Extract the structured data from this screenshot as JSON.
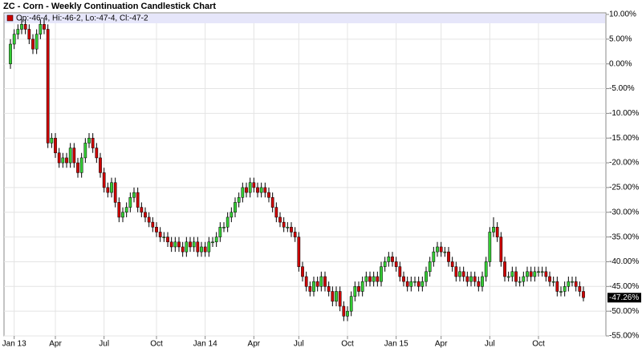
{
  "chart_data": {
    "type": "candlestick",
    "title": "ZC - Corn - Weekly Continuation Candlestick Chart",
    "legend_text": "Op:-46-4, Hi:-46-2, Lo:-47-4, Cl:-47-2",
    "up_color": "#33cc33",
    "down_color": "#cc0000",
    "grid": true,
    "last_price": {
      "value": -47.26,
      "label": "-47.26%"
    },
    "ylim": [
      -55,
      10
    ],
    "yticks": [
      {
        "value": 10,
        "label": "10.00%"
      },
      {
        "value": 5,
        "label": "5.00%"
      },
      {
        "value": 0,
        "label": "0.00%"
      },
      {
        "value": -5,
        "label": "-5.00%"
      },
      {
        "value": -10,
        "label": "-10.00%"
      },
      {
        "value": -15,
        "label": "-15.00%"
      },
      {
        "value": -20,
        "label": "-20.00%"
      },
      {
        "value": -25,
        "label": "-25.00%"
      },
      {
        "value": -30,
        "label": "-30.00%"
      },
      {
        "value": -35,
        "label": "-35.00%"
      },
      {
        "value": -40,
        "label": "-40.00%"
      },
      {
        "value": -45,
        "label": "-45.00%"
      },
      {
        "value": -50,
        "label": "-50.00%"
      },
      {
        "value": -55,
        "label": "-55.00%"
      }
    ],
    "categories": [
      null,
      "Jan 13",
      null,
      null,
      null,
      null,
      null,
      null,
      null,
      null,
      null,
      null,
      "Apr",
      null,
      null,
      null,
      null,
      null,
      null,
      null,
      null,
      null,
      null,
      null,
      null,
      "Jul",
      null,
      null,
      null,
      null,
      null,
      null,
      null,
      null,
      null,
      null,
      null,
      null,
      null,
      "Oct",
      null,
      null,
      null,
      null,
      null,
      null,
      null,
      null,
      null,
      null,
      null,
      null,
      "Jan 14",
      null,
      null,
      null,
      null,
      null,
      null,
      null,
      null,
      null,
      null,
      null,
      null,
      "Apr",
      null,
      null,
      null,
      null,
      null,
      null,
      null,
      null,
      null,
      null,
      null,
      "Jul",
      null,
      null,
      null,
      null,
      null,
      null,
      null,
      null,
      null,
      null,
      null,
      null,
      "Oct",
      null,
      null,
      null,
      null,
      null,
      null,
      null,
      null,
      null,
      null,
      null,
      null,
      "Jan 15",
      null,
      null,
      null,
      null,
      null,
      null,
      null,
      null,
      null,
      null,
      null,
      "Apr",
      null,
      null,
      null,
      null,
      null,
      null,
      null,
      null,
      null,
      null,
      null,
      null,
      "Jul",
      null,
      null,
      null,
      null,
      null,
      null,
      null,
      null,
      null,
      null,
      null,
      null,
      "Oct",
      null,
      null,
      null,
      null,
      null,
      null,
      null,
      null,
      null,
      null,
      null,
      null
    ],
    "open": [
      0,
      4,
      6,
      7,
      8,
      7,
      5,
      3,
      6,
      8,
      7,
      -16,
      -15,
      -18,
      -20,
      -19,
      -20,
      -17,
      -20,
      -22,
      -19,
      -16,
      -15,
      -17,
      -19,
      -22,
      -25,
      -26,
      -24,
      -28,
      -31,
      -30,
      -29,
      -27,
      -26,
      -29,
      -30,
      -31,
      -32,
      -33,
      -34,
      -35,
      -35,
      -36,
      -37,
      -36,
      -37,
      -38,
      -36,
      -37,
      -36,
      -38,
      -37,
      -38,
      -36,
      -36,
      -35,
      -33,
      -33,
      -31,
      -30,
      -28,
      -27,
      -25,
      -26,
      -24,
      -25,
      -26,
      -25,
      -26,
      -27,
      -29,
      -31,
      -32,
      -33,
      -33,
      -34,
      -35,
      -41,
      -43,
      -45,
      -46,
      -44,
      -45,
      -43,
      -45,
      -46,
      -48,
      -46,
      -49,
      -51,
      -50,
      -47,
      -45,
      -46,
      -44,
      -43,
      -44,
      -43,
      -44,
      -41,
      -40,
      -39,
      -40,
      -41,
      -43,
      -44,
      -45,
      -44,
      -44,
      -45,
      -44,
      -42,
      -40,
      -38,
      -37,
      -38,
      -38,
      -40,
      -41,
      -43,
      -42,
      -43,
      -44,
      -43,
      -44,
      -45,
      -43,
      -40,
      -34,
      -33,
      -35,
      -40,
      -43,
      -43,
      -42,
      -44,
      -44,
      -43,
      -42,
      -43,
      -42,
      -42,
      -42,
      -43,
      -44,
      -44,
      -46,
      -46,
      -45,
      -44,
      -44,
      -45,
      -46
    ],
    "high": [
      5,
      7,
      8,
      9,
      9,
      8,
      6,
      7,
      9,
      9,
      8,
      -14,
      -14,
      -17,
      -18,
      -18,
      -16,
      -16,
      -19,
      -18,
      -15,
      -14,
      -14,
      -16,
      -18,
      -21,
      -24,
      -23,
      -23,
      -27,
      -29,
      -28,
      -26,
      -25,
      -25,
      -28,
      -29,
      -30,
      -31,
      -32,
      -33,
      -34,
      -34,
      -35,
      -35,
      -35,
      -36,
      -35,
      -35,
      -35,
      -35,
      -36,
      -36,
      -35,
      -35,
      -34,
      -32,
      -32,
      -30,
      -29,
      -27,
      -26,
      -24,
      -24,
      -23,
      -23,
      -24,
      -24,
      -24,
      -25,
      -26,
      -28,
      -30,
      -31,
      -32,
      -32,
      -33,
      -34,
      -40,
      -42,
      -44,
      -43,
      -43,
      -42,
      -42,
      -44,
      -45,
      -45,
      -45,
      -48,
      -49,
      -46,
      -44,
      -44,
      -43,
      -42,
      -42,
      -42,
      -42,
      -40,
      -39,
      -38,
      -38,
      -39,
      -40,
      -42,
      -43,
      -43,
      -43,
      -43,
      -43,
      -41,
      -39,
      -37,
      -36,
      -36,
      -37,
      -37,
      -39,
      -40,
      -41,
      -41,
      -42,
      -42,
      -42,
      -43,
      -42,
      -39,
      -33,
      -31,
      -32,
      -34,
      -39,
      -42,
      -41,
      -41,
      -43,
      -42,
      -41,
      -41,
      -41,
      -41,
      -41,
      -41,
      -42,
      -43,
      -43,
      -45,
      -44,
      -43,
      -43,
      -43,
      -44,
      -45
    ],
    "low": [
      -1,
      3,
      5,
      6,
      6,
      4,
      2,
      2,
      5,
      6,
      -17,
      -17,
      -19,
      -21,
      -21,
      -21,
      -21,
      -21,
      -23,
      -23,
      -20,
      -17,
      -18,
      -20,
      -23,
      -26,
      -27,
      -27,
      -29,
      -32,
      -32,
      -31,
      -30,
      -28,
      -30,
      -31,
      -32,
      -33,
      -34,
      -35,
      -36,
      -36,
      -37,
      -38,
      -38,
      -38,
      -39,
      -39,
      -38,
      -38,
      -39,
      -39,
      -39,
      -39,
      -37,
      -37,
      -36,
      -34,
      -34,
      -32,
      -31,
      -29,
      -28,
      -27,
      -27,
      -26,
      -27,
      -27,
      -27,
      -28,
      -30,
      -32,
      -33,
      -34,
      -34,
      -35,
      -36,
      -42,
      -44,
      -46,
      -47,
      -47,
      -46,
      -46,
      -46,
      -47,
      -49,
      -49,
      -50,
      -52,
      -52,
      -51,
      -48,
      -47,
      -47,
      -45,
      -45,
      -45,
      -45,
      -45,
      -42,
      -41,
      -41,
      -42,
      -44,
      -45,
      -46,
      -46,
      -45,
      -46,
      -46,
      -45,
      -43,
      -41,
      -39,
      -39,
      -39,
      -41,
      -42,
      -44,
      -44,
      -44,
      -45,
      -45,
      -45,
      -46,
      -46,
      -44,
      -41,
      -35,
      -36,
      -41,
      -44,
      -44,
      -44,
      -45,
      -45,
      -45,
      -44,
      -44,
      -44,
      -43,
      -43,
      -44,
      -45,
      -45,
      -47,
      -47,
      -47,
      -46,
      -45,
      -46,
      -47,
      -48
    ],
    "close": [
      4,
      6,
      7,
      8,
      7,
      5,
      3,
      6,
      8,
      7,
      -16,
      -15,
      -18,
      -20,
      -19,
      -20,
      -17,
      -20,
      -22,
      -19,
      -16,
      -15,
      -17,
      -19,
      -22,
      -25,
      -26,
      -24,
      -28,
      -31,
      -30,
      -29,
      -27,
      -26,
      -29,
      -30,
      -31,
      -32,
      -33,
      -34,
      -35,
      -35,
      -36,
      -37,
      -36,
      -37,
      -38,
      -36,
      -37,
      -36,
      -38,
      -37,
      -38,
      -36,
      -36,
      -35,
      -33,
      -33,
      -31,
      -30,
      -28,
      -27,
      -25,
      -26,
      -24,
      -25,
      -26,
      -25,
      -26,
      -27,
      -29,
      -31,
      -32,
      -33,
      -33,
      -34,
      -35,
      -41,
      -43,
      -45,
      -46,
      -44,
      -45,
      -43,
      -45,
      -46,
      -48,
      -46,
      -49,
      -51,
      -50,
      -47,
      -45,
      -46,
      -44,
      -43,
      -44,
      -43,
      -44,
      -41,
      -40,
      -39,
      -40,
      -41,
      -43,
      -44,
      -45,
      -44,
      -44,
      -45,
      -44,
      -42,
      -40,
      -38,
      -37,
      -38,
      -38,
      -40,
      -41,
      -43,
      -42,
      -43,
      -44,
      -43,
      -44,
      -45,
      -43,
      -40,
      -34,
      -33,
      -35,
      -40,
      -43,
      -43,
      -42,
      -44,
      -44,
      -43,
      -42,
      -43,
      -42,
      -42,
      -42,
      -43,
      -44,
      -44,
      -46,
      -46,
      -45,
      -44,
      -44,
      -45,
      -46,
      -47.26
    ]
  }
}
